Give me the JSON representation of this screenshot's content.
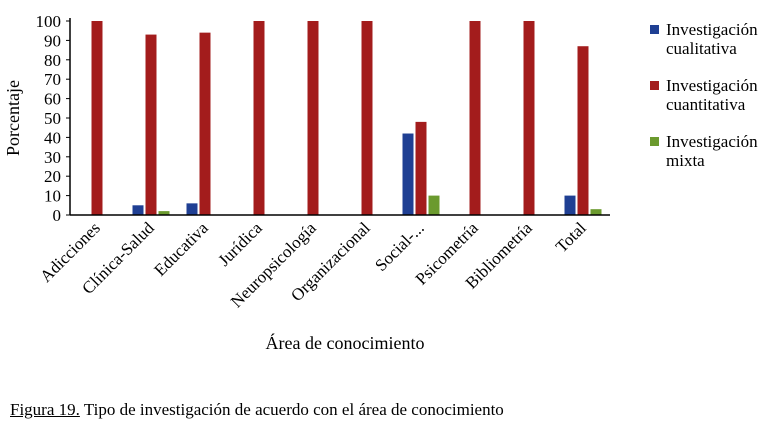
{
  "chart_data": {
    "type": "bar",
    "categories": [
      "Adicciones",
      "Clínica-Salud",
      "Educativa",
      "Jurídica",
      "Neuropsicología",
      "Organizacional",
      "Social-...",
      "Psicometría",
      "Bibliometría",
      "Total"
    ],
    "series": [
      {
        "name": "Investigación cualitativa",
        "color": "#1f3f93",
        "values": [
          0,
          5,
          6,
          0,
          0,
          0,
          42,
          0,
          0,
          10
        ]
      },
      {
        "name": "Investigación cuantitativa",
        "color": "#a31c1c",
        "values": [
          100,
          93,
          94,
          100,
          100,
          100,
          48,
          100,
          100,
          87
        ]
      },
      {
        "name": "Investigación mixta",
        "color": "#6b9a2e",
        "values": [
          0,
          2,
          0,
          0,
          0,
          0,
          10,
          0,
          0,
          3
        ]
      }
    ],
    "xlabel": "Área de conocimiento",
    "ylabel": "Porcentaje",
    "ylim": [
      0,
      100
    ],
    "yticks": [
      0,
      10,
      20,
      30,
      40,
      50,
      60,
      70,
      80,
      90,
      100
    ],
    "grid": false,
    "legend_position": "right"
  },
  "legend": {
    "items": [
      {
        "line1": "Investigación",
        "line2": "cualitativa",
        "color": "#1f3f93"
      },
      {
        "line1": "Investigación",
        "line2": "cuantitativa",
        "color": "#a31c1c"
      },
      {
        "line1": "Investigación",
        "line2": "mixta",
        "color": "#6b9a2e"
      }
    ]
  },
  "caption": {
    "label": "Figura 19.",
    "text": " Tipo de investigación de acuerdo con el área de conocimiento"
  }
}
